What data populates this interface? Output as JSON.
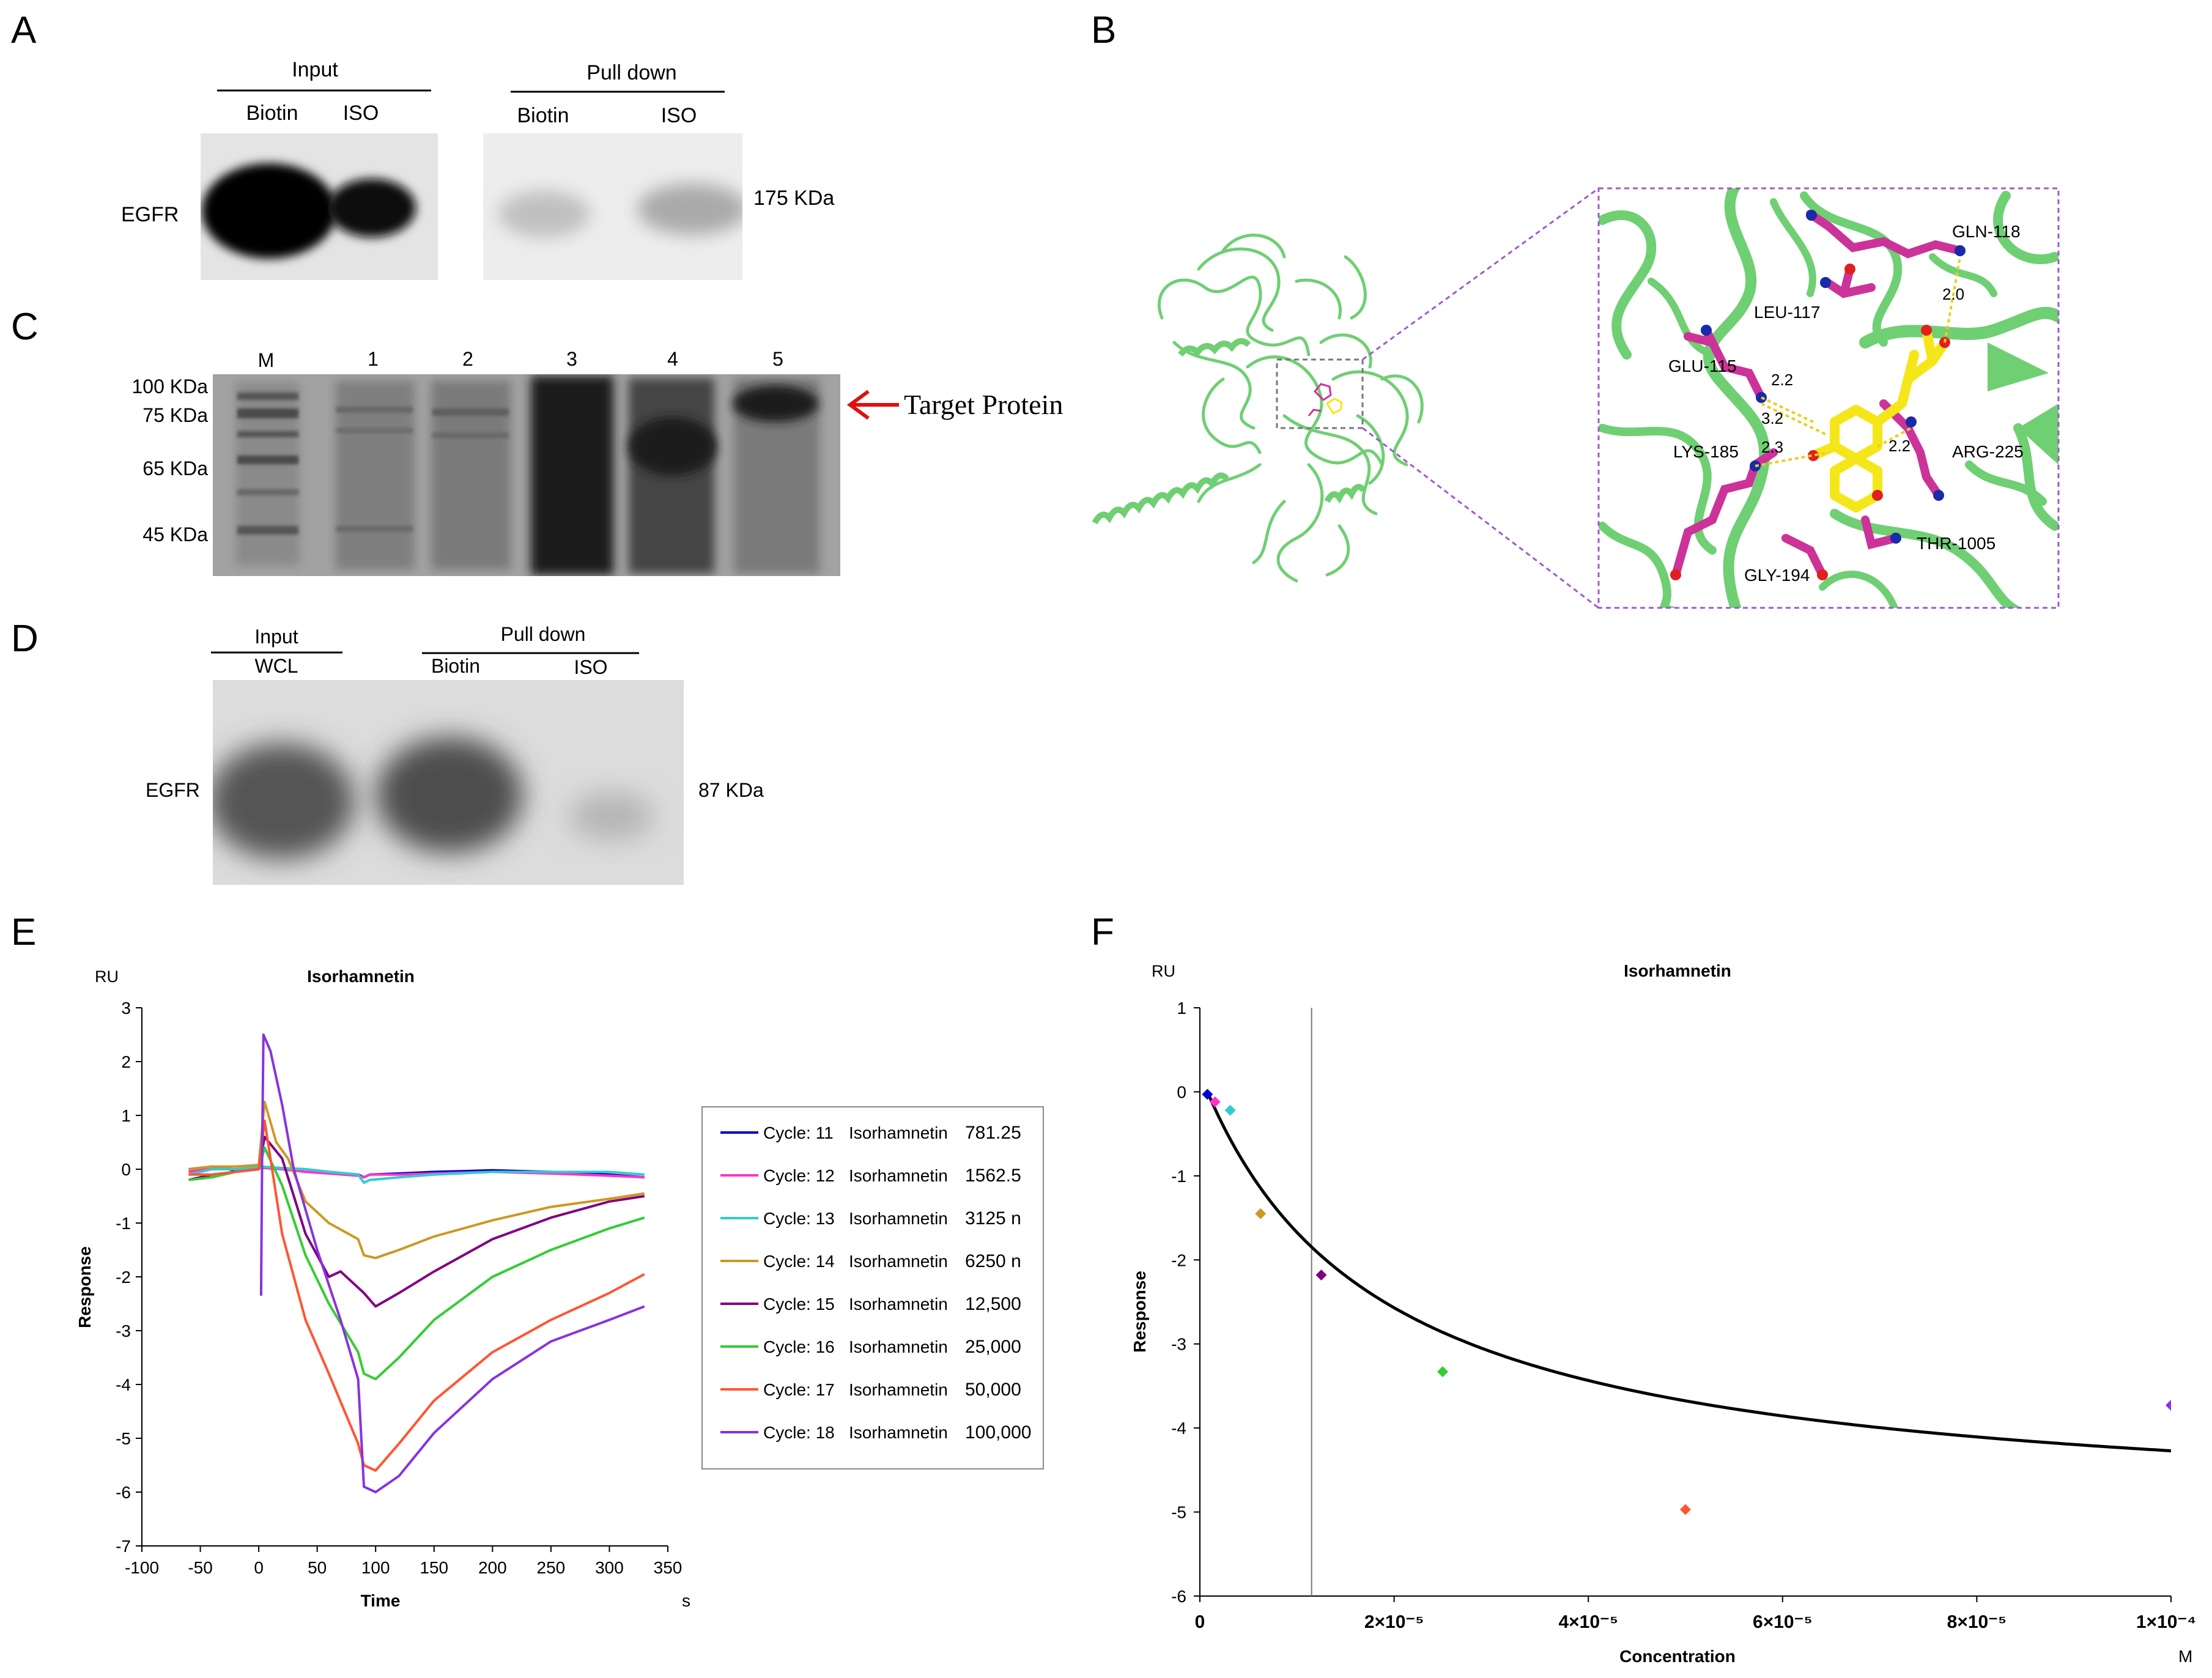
{
  "panels": {
    "A": "A",
    "B": "B",
    "C": "C",
    "D": "D",
    "E": "E",
    "F": "F"
  },
  "panel_a": {
    "input_label": "Input",
    "pulldown_label": "Pull down",
    "lanes": [
      "Biotin",
      "ISO",
      "Biotin",
      "ISO"
    ],
    "protein": "EGFR",
    "size": "175 KDa"
  },
  "panel_c": {
    "lanes": [
      "M",
      "1",
      "2",
      "3",
      "4",
      "5"
    ],
    "markers": [
      "100 KDa",
      "75 KDa",
      "65 KDa",
      "45 KDa"
    ],
    "target": "Target Protein"
  },
  "panel_b": {
    "residues": [
      "GLN-118",
      "LEU-117",
      "GLU-115",
      "LYS-185",
      "ARG-225",
      "THR-1005",
      "GLY-194"
    ],
    "distances": [
      "2.0",
      "2.2",
      "3.2",
      "2.3",
      "2.2"
    ]
  },
  "panel_d": {
    "input_label": "Input",
    "wcl_label": "WCL",
    "pulldown_label": "Pull down",
    "lanes": [
      "Biotin",
      "ISO"
    ],
    "protein": "EGFR",
    "size": "87 KDa"
  },
  "colors": {
    "c11": "#0000cc",
    "c12": "#ff33cc",
    "c13": "#33cccc",
    "c14": "#cc9922",
    "c15": "#800080",
    "c16": "#33cc33",
    "c17": "#ff5533",
    "c18": "#8833dd",
    "protein_green": "#6fcf73",
    "residue_magenta": "#cc3399",
    "ligand_yellow": "#f5e619",
    "box_purple": "#a05acc",
    "arrow_red": "#e01010"
  },
  "chart_data": [
    {
      "type": "line",
      "title": "Isorhamnetin",
      "unit_label": "RU",
      "xlabel": "Time",
      "x_unit": "s",
      "ylabel": "Response",
      "xlim": [
        -100,
        350
      ],
      "ylim": [
        -7,
        3
      ],
      "xticks": [
        "-100",
        "-50",
        "0",
        "50",
        "100",
        "150",
        "200",
        "250",
        "300",
        "350"
      ],
      "yticks": [
        "3",
        "2",
        "1",
        "0",
        "-1",
        "-2",
        "-3",
        "-4",
        "-5",
        "-6",
        "-7"
      ],
      "legend": [
        {
          "cycle": "Cycle: 11",
          "analyte": "Isorhamnetin",
          "conc": "781.25"
        },
        {
          "cycle": "Cycle: 12",
          "analyte": "Isorhamnetin",
          "conc": "1562.5"
        },
        {
          "cycle": "Cycle: 13",
          "analyte": "Isorhamnetin",
          "conc": "3125 n"
        },
        {
          "cycle": "Cycle: 14",
          "analyte": "Isorhamnetin",
          "conc": "6250 n"
        },
        {
          "cycle": "Cycle: 15",
          "analyte": "Isorhamnetin",
          "conc": "12,500"
        },
        {
          "cycle": "Cycle: 16",
          "analyte": "Isorhamnetin",
          "conc": "25,000"
        },
        {
          "cycle": "Cycle: 17",
          "analyte": "Isorhamnetin",
          "conc": "50,000"
        },
        {
          "cycle": "Cycle: 18",
          "analyte": "Isorhamnetin",
          "conc": "100,000"
        }
      ],
      "series": [
        {
          "name": "Cycle: 11",
          "color": "#0000cc",
          "points": [
            [
              -60,
              0.0
            ],
            [
              -40,
              0.05
            ],
            [
              -20,
              -0.02
            ],
            [
              0,
              0.05
            ],
            [
              20,
              0.02
            ],
            [
              40,
              0.0
            ],
            [
              60,
              -0.05
            ],
            [
              85,
              -0.1
            ],
            [
              90,
              -0.15
            ],
            [
              95,
              -0.1
            ],
            [
              120,
              -0.08
            ],
            [
              150,
              -0.05
            ],
            [
              200,
              -0.02
            ],
            [
              250,
              -0.05
            ],
            [
              300,
              -0.1
            ],
            [
              330,
              -0.15
            ]
          ]
        },
        {
          "name": "Cycle: 12",
          "color": "#ff33cc",
          "points": [
            [
              -60,
              -0.05
            ],
            [
              -40,
              0.02
            ],
            [
              -20,
              0.0
            ],
            [
              0,
              0.03
            ],
            [
              20,
              0.0
            ],
            [
              40,
              -0.05
            ],
            [
              60,
              -0.08
            ],
            [
              85,
              -0.12
            ],
            [
              90,
              -0.15
            ],
            [
              95,
              -0.1
            ],
            [
              120,
              -0.1
            ],
            [
              150,
              -0.08
            ],
            [
              200,
              -0.05
            ],
            [
              250,
              -0.08
            ],
            [
              300,
              -0.12
            ],
            [
              330,
              -0.15
            ]
          ]
        },
        {
          "name": "Cycle: 13",
          "color": "#33cccc",
          "points": [
            [
              -60,
              -0.1
            ],
            [
              -40,
              0.0
            ],
            [
              -20,
              0.0
            ],
            [
              0,
              0.05
            ],
            [
              20,
              0.02
            ],
            [
              40,
              0.0
            ],
            [
              60,
              -0.05
            ],
            [
              85,
              -0.1
            ],
            [
              90,
              -0.25
            ],
            [
              95,
              -0.2
            ],
            [
              120,
              -0.15
            ],
            [
              150,
              -0.1
            ],
            [
              200,
              -0.05
            ],
            [
              250,
              -0.05
            ],
            [
              300,
              -0.05
            ],
            [
              330,
              -0.1
            ]
          ]
        },
        {
          "name": "Cycle: 14",
          "color": "#cc9922",
          "points": [
            [
              -60,
              0.0
            ],
            [
              -40,
              0.05
            ],
            [
              -20,
              0.05
            ],
            [
              0,
              0.08
            ],
            [
              5,
              1.25
            ],
            [
              15,
              0.5
            ],
            [
              25,
              0.2
            ],
            [
              40,
              -0.6
            ],
            [
              60,
              -1.0
            ],
            [
              85,
              -1.3
            ],
            [
              90,
              -1.6
            ],
            [
              100,
              -1.65
            ],
            [
              120,
              -1.5
            ],
            [
              150,
              -1.25
            ],
            [
              200,
              -0.95
            ],
            [
              250,
              -0.7
            ],
            [
              300,
              -0.55
            ],
            [
              330,
              -0.45
            ]
          ]
        },
        {
          "name": "Cycle: 15",
          "color": "#800080",
          "points": [
            [
              -60,
              -0.2
            ],
            [
              -40,
              -0.1
            ],
            [
              -20,
              -0.05
            ],
            [
              0,
              0.0
            ],
            [
              5,
              0.6
            ],
            [
              20,
              0.2
            ],
            [
              40,
              -1.2
            ],
            [
              60,
              -2.0
            ],
            [
              70,
              -1.9
            ],
            [
              80,
              -2.1
            ],
            [
              90,
              -2.3
            ],
            [
              100,
              -2.55
            ],
            [
              120,
              -2.3
            ],
            [
              150,
              -1.9
            ],
            [
              200,
              -1.3
            ],
            [
              250,
              -0.9
            ],
            [
              300,
              -0.6
            ],
            [
              330,
              -0.5
            ]
          ]
        },
        {
          "name": "Cycle: 16",
          "color": "#33cc33",
          "points": [
            [
              -60,
              -0.2
            ],
            [
              -40,
              -0.15
            ],
            [
              -20,
              -0.05
            ],
            [
              0,
              0.0
            ],
            [
              5,
              0.4
            ],
            [
              20,
              -0.3
            ],
            [
              40,
              -1.6
            ],
            [
              60,
              -2.5
            ],
            [
              85,
              -3.4
            ],
            [
              90,
              -3.8
            ],
            [
              100,
              -3.9
            ],
            [
              120,
              -3.5
            ],
            [
              150,
              -2.8
            ],
            [
              200,
              -2.0
            ],
            [
              250,
              -1.5
            ],
            [
              300,
              -1.1
            ],
            [
              330,
              -0.9
            ]
          ]
        },
        {
          "name": "Cycle: 17",
          "color": "#ff5533",
          "points": [
            [
              -60,
              -0.1
            ],
            [
              -40,
              -0.1
            ],
            [
              -20,
              -0.05
            ],
            [
              0,
              0.0
            ],
            [
              5,
              0.9
            ],
            [
              20,
              -1.2
            ],
            [
              40,
              -2.8
            ],
            [
              60,
              -3.8
            ],
            [
              85,
              -5.1
            ],
            [
              90,
              -5.5
            ],
            [
              100,
              -5.6
            ],
            [
              120,
              -5.1
            ],
            [
              150,
              -4.3
            ],
            [
              200,
              -3.4
            ],
            [
              250,
              -2.8
            ],
            [
              300,
              -2.3
            ],
            [
              330,
              -1.95
            ]
          ]
        },
        {
          "name": "Cycle: 18",
          "color": "#8833dd",
          "points": [
            [
              2,
              -2.35
            ],
            [
              3,
              0.5
            ],
            [
              4,
              2.5
            ],
            [
              10,
              2.2
            ],
            [
              20,
              1.2
            ],
            [
              30,
              0.0
            ],
            [
              50,
              -1.5
            ],
            [
              70,
              -2.8
            ],
            [
              85,
              -3.9
            ],
            [
              90,
              -5.9
            ],
            [
              100,
              -6.0
            ],
            [
              120,
              -5.7
            ],
            [
              150,
              -4.9
            ],
            [
              200,
              -3.9
            ],
            [
              250,
              -3.2
            ],
            [
              300,
              -2.8
            ],
            [
              330,
              -2.55
            ]
          ]
        }
      ]
    },
    {
      "type": "scatter",
      "title": "Isorhamnetin",
      "unit_label": "RU",
      "xlabel": "Concentration",
      "x_unit": "M",
      "ylabel": "Response",
      "xlim": [
        0,
        0.0001
      ],
      "ylim": [
        -6,
        1
      ],
      "xticks": [
        "0",
        "2×10⁻⁵",
        "4×10⁻⁵",
        "6×10⁻⁵",
        "8×10⁻⁵",
        "1×10⁻⁴"
      ],
      "yticks": [
        "1",
        "0",
        "-1",
        "-2",
        "-3",
        "-4",
        "-5",
        "-6"
      ],
      "vline_x": 1.15e-05,
      "points": [
        {
          "x": 7.8e-07,
          "y": -0.03,
          "color": "#0000cc"
        },
        {
          "x": 1.56e-06,
          "y": -0.12,
          "color": "#ff33cc"
        },
        {
          "x": 3.125e-06,
          "y": -0.22,
          "color": "#33cccc"
        },
        {
          "x": 6.25e-06,
          "y": -1.45,
          "color": "#cc9922"
        },
        {
          "x": 1.25e-05,
          "y": -2.18,
          "color": "#800080"
        },
        {
          "x": 2.5e-05,
          "y": -3.33,
          "color": "#33cc33"
        },
        {
          "x": 5e-05,
          "y": -4.97,
          "color": "#ff5533"
        },
        {
          "x": 0.0001,
          "y": -3.73,
          "color": "#8833dd"
        }
      ],
      "fit": {
        "rmax": -5.3,
        "kd": 1.8e-05,
        "offset": 0.22,
        "x_start": 8e-07,
        "x_end": 0.0001
      }
    }
  ]
}
